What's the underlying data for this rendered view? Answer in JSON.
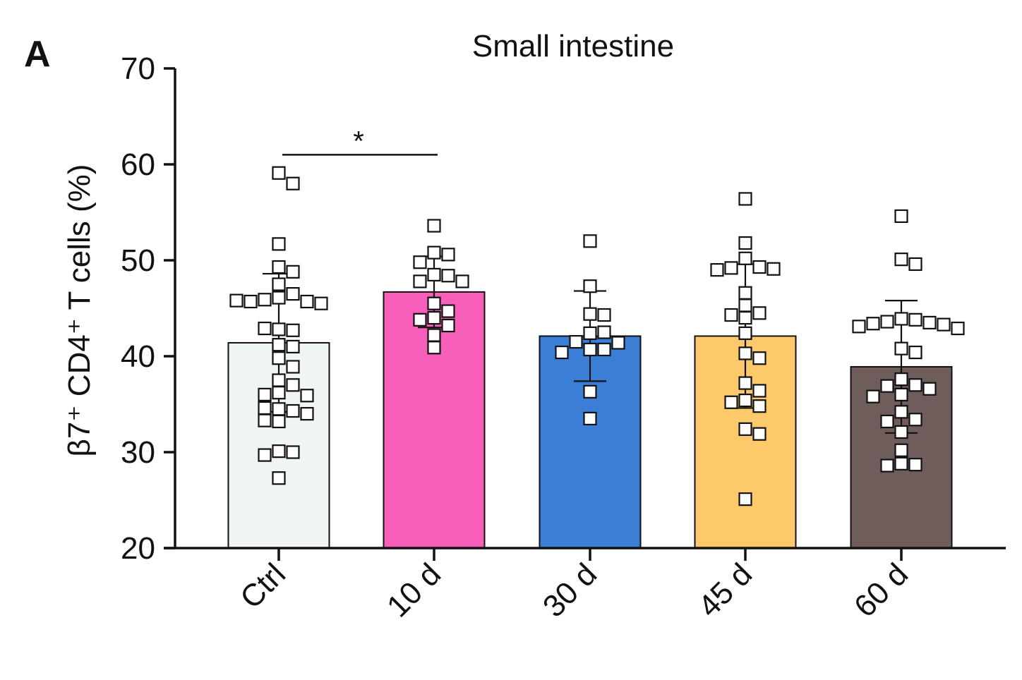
{
  "panel_label": "A",
  "chart_data": {
    "type": "bar",
    "title": "Small intestine",
    "ylabel": "β7⁺ CD4⁺ T cells (%)",
    "xlabel": "",
    "ylim": [
      20,
      70
    ],
    "yticks": [
      20,
      30,
      40,
      50,
      60,
      70
    ],
    "categories": [
      "Ctrl",
      "10 d",
      "30 d",
      "45 d",
      "60 d"
    ],
    "colors": [
      "#eef5f4",
      "#f75fba",
      "#3a7fd5",
      "#fdc96a",
      "#6e5d5a"
    ],
    "means": [
      41.4,
      46.7,
      42.1,
      42.1,
      38.9
    ],
    "errors": [
      7.2,
      3.7,
      4.7,
      7.5,
      6.9
    ],
    "points": [
      [
        59.1,
        58.0,
        51.7,
        49.3,
        48.8,
        47.5,
        46.5,
        46.1,
        45.9,
        45.7,
        45.7,
        45.5,
        45.8,
        42.8,
        42.7,
        42.9,
        41.2,
        41.0,
        39.8,
        38.9,
        37.5,
        37.0,
        36.2,
        36.0,
        35.9,
        34.5,
        34.3,
        34.6,
        34.0,
        33.2,
        33.3,
        30.1,
        30.0,
        29.7,
        27.3
      ],
      [
        53.6,
        50.8,
        50.6,
        49.8,
        48.5,
        48.4,
        47.8,
        47.8,
        45.5,
        44.7,
        44.0,
        43.8,
        43.2,
        42.2,
        40.9
      ],
      [
        52.0,
        47.3,
        44.4,
        44.3,
        42.4,
        42.5,
        41.5,
        41.4,
        40.7,
        40.7,
        40.4,
        36.3,
        33.5
      ],
      [
        56.4,
        51.8,
        50.2,
        49.3,
        49.2,
        49.1,
        49.0,
        46.6,
        45.3,
        44.5,
        44.3,
        44.0,
        42.4,
        40.3,
        39.8,
        37.2,
        36.4,
        35.4,
        35.2,
        34.8,
        32.4,
        31.9,
        25.1
      ],
      [
        54.6,
        50.1,
        49.6,
        43.9,
        43.8,
        43.6,
        43.5,
        43.4,
        43.3,
        43.1,
        42.9,
        40.8,
        40.4,
        37.6,
        37.0,
        36.9,
        36.6,
        36.0,
        35.8,
        34.2,
        33.4,
        33.2,
        32.1,
        30.2,
        28.8,
        28.7,
        28.6
      ]
    ],
    "significance": [
      {
        "from": 0,
        "to": 1,
        "y": 61.0,
        "label": "*"
      }
    ],
    "grid": false,
    "legend": "none"
  }
}
